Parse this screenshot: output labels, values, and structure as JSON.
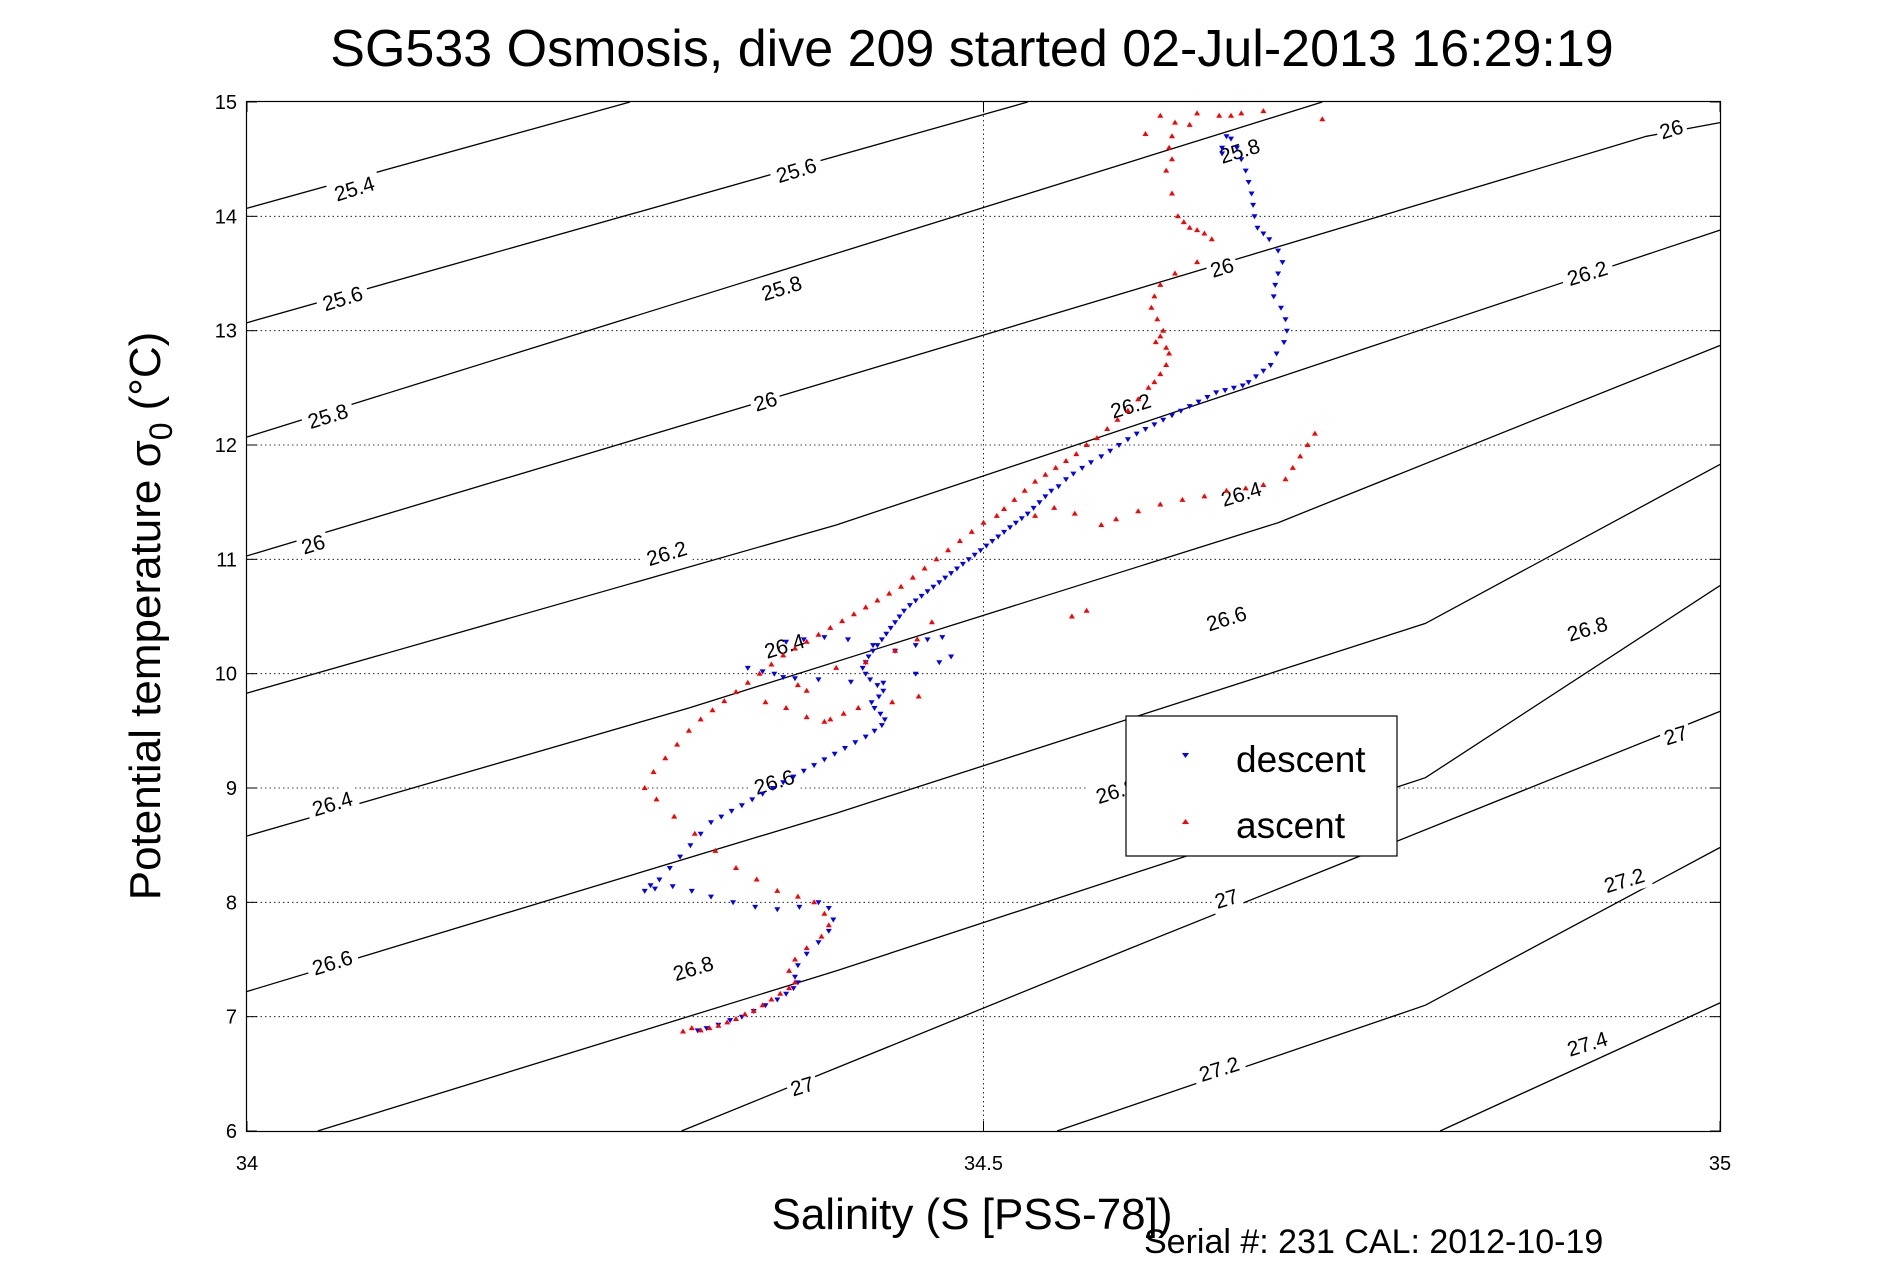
{
  "chart_data": {
    "type": "scatter",
    "title": "SG533 Osmosis, dive 209 started 02-Jul-2013 16:29:19",
    "xlabel": "Salinity (S [PSS-78])",
    "ylabel_main": "Potential temperature σ",
    "ylabel_sub": "0",
    "ylabel_unit": "(°C)",
    "xlim": [
      34,
      35
    ],
    "ylim": [
      6,
      15
    ],
    "x_ticks": [
      34,
      34.5,
      35
    ],
    "x_tick_labels": [
      "34",
      "34.5",
      "35"
    ],
    "y_ticks": [
      6,
      7,
      8,
      9,
      10,
      11,
      12,
      13,
      14,
      15
    ],
    "y_tick_labels": [
      "6",
      "7",
      "8",
      "9",
      "10",
      "11",
      "12",
      "13",
      "14",
      "15"
    ],
    "grid": true,
    "legend_position": "right-middle",
    "footer": "Serial #: 231  CAL: 2012-10-19",
    "density_contours": [
      {
        "label": "25.4",
        "points": [
          [
            34.0,
            14.07
          ],
          [
            34.26,
            15.0
          ]
        ]
      },
      {
        "label": "25.6",
        "points": [
          [
            34.0,
            13.07
          ],
          [
            34.53,
            15.0
          ]
        ]
      },
      {
        "label": "25.8",
        "points": [
          [
            34.0,
            12.07
          ],
          [
            34.73,
            15.0
          ]
        ]
      },
      {
        "label": "26",
        "points": [
          [
            34.0,
            11.03
          ],
          [
            34.95,
            14.7
          ],
          [
            35.0,
            14.82
          ]
        ]
      },
      {
        "label": "26.2",
        "points": [
          [
            34.0,
            9.83
          ],
          [
            34.4,
            11.3
          ],
          [
            35.0,
            13.88
          ]
        ]
      },
      {
        "label": "26.4",
        "points": [
          [
            34.0,
            8.58
          ],
          [
            34.3,
            9.7
          ],
          [
            34.7,
            11.32
          ],
          [
            35.0,
            12.87
          ]
        ]
      },
      {
        "label": "26.6",
        "points": [
          [
            34.0,
            7.22
          ],
          [
            34.4,
            8.78
          ],
          [
            34.8,
            10.44
          ],
          [
            35.0,
            11.83
          ]
        ]
      },
      {
        "label": "26.8",
        "points": [
          [
            34.048,
            6.0
          ],
          [
            34.4,
            7.4
          ],
          [
            34.8,
            9.09
          ],
          [
            35.0,
            10.77
          ]
        ]
      },
      {
        "label": "27",
        "points": [
          [
            34.295,
            6.0
          ],
          [
            34.6,
            7.6
          ],
          [
            35.0,
            9.67
          ]
        ]
      },
      {
        "label": "27.2",
        "points": [
          [
            34.55,
            6.0
          ],
          [
            34.8,
            7.1
          ],
          [
            35.0,
            8.48
          ]
        ]
      },
      {
        "label": "27.4",
        "points": [
          [
            34.81,
            6.0
          ],
          [
            35.0,
            7.12
          ]
        ]
      }
    ],
    "contour_labels": [
      {
        "text": "25.4",
        "x": 34.073,
        "y": 14.24
      },
      {
        "text": "25.6",
        "x": 34.373,
        "y": 14.4
      },
      {
        "text": "25.8",
        "x": 34.674,
        "y": 14.57
      },
      {
        "text": "26",
        "x": 34.967,
        "y": 14.76
      },
      {
        "text": "25.6",
        "x": 34.065,
        "y": 13.28
      },
      {
        "text": "25.8",
        "x": 34.363,
        "y": 13.37
      },
      {
        "text": "26",
        "x": 34.662,
        "y": 13.55
      },
      {
        "text": "26.2",
        "x": 34.91,
        "y": 13.5
      },
      {
        "text": "25.8",
        "x": 34.055,
        "y": 12.25
      },
      {
        "text": "26",
        "x": 34.352,
        "y": 12.38
      },
      {
        "text": "26.2",
        "x": 34.6,
        "y": 12.34
      },
      {
        "text": "26.4",
        "x": 34.675,
        "y": 11.57
      },
      {
        "text": "26",
        "x": 34.045,
        "y": 11.13
      },
      {
        "text": "26.2",
        "x": 34.285,
        "y": 11.05
      },
      {
        "text": "26.6",
        "x": 34.665,
        "y": 10.48
      },
      {
        "text": "26.8",
        "x": 34.91,
        "y": 10.39
      },
      {
        "text": "26.4",
        "x": 34.365,
        "y": 10.24
      },
      {
        "text": "26.6",
        "x": 34.358,
        "y": 9.05
      },
      {
        "text": "27",
        "x": 34.97,
        "y": 9.46
      },
      {
        "text": "26.8",
        "x": 34.59,
        "y": 8.97
      },
      {
        "text": "26.4",
        "x": 34.058,
        "y": 8.86
      },
      {
        "text": "26.6",
        "x": 34.058,
        "y": 7.47
      },
      {
        "text": "26.8",
        "x": 34.303,
        "y": 7.42
      },
      {
        "text": "27",
        "x": 34.665,
        "y": 8.03
      },
      {
        "text": "27.2",
        "x": 34.935,
        "y": 8.19
      },
      {
        "text": "27",
        "x": 34.377,
        "y": 6.39
      },
      {
        "text": "27.2",
        "x": 34.66,
        "y": 6.54
      },
      {
        "text": "27.4",
        "x": 34.91,
        "y": 6.76
      }
    ],
    "series": [
      {
        "name": "descent",
        "color": "#0000ff",
        "marker": "triangle-down",
        "x": [
          34.665,
          34.662,
          34.662,
          34.668,
          34.672,
          34.675,
          34.678,
          34.68,
          34.682,
          34.683,
          34.684,
          34.686,
          34.69,
          34.694,
          34.7,
          34.703,
          34.7,
          34.698,
          34.697,
          34.702,
          34.705,
          34.706,
          34.704,
          34.699,
          34.695,
          34.69,
          34.685,
          34.68,
          34.676,
          34.67,
          34.664,
          34.658,
          34.652,
          34.646,
          34.64,
          34.634,
          34.628,
          34.622,
          34.616,
          34.61,
          34.604,
          34.598,
          34.592,
          34.586,
          34.58,
          34.573,
          34.567,
          34.561,
          34.556,
          34.551,
          34.546,
          34.542,
          34.538,
          34.534,
          34.53,
          34.526,
          34.522,
          34.518,
          34.514,
          34.51,
          34.506,
          34.502,
          34.498,
          34.494,
          34.49,
          34.486,
          34.482,
          34.478,
          34.474,
          34.47,
          34.466,
          34.462,
          34.458,
          34.454,
          34.45,
          34.446,
          34.443,
          34.44,
          34.437,
          34.434,
          34.431,
          34.428,
          34.425,
          34.422,
          34.42,
          34.418,
          34.42,
          34.423,
          34.428,
          34.432,
          34.429,
          34.424,
          34.426,
          34.43,
          34.433,
          34.431,
          34.426,
          34.42,
          34.413,
          34.406,
          34.399,
          34.392,
          34.385,
          34.378,
          34.371,
          34.364,
          34.357,
          34.35,
          34.343,
          34.336,
          34.329,
          34.322,
          34.315,
          34.308,
          34.301,
          34.294,
          34.287,
          34.28,
          34.274,
          34.27,
          34.277,
          34.289,
          34.302,
          34.315,
          34.33,
          34.345,
          34.36,
          34.375,
          34.388,
          34.395,
          34.398,
          34.395,
          34.388,
          34.38,
          34.374,
          34.372,
          34.374,
          34.371,
          34.366,
          34.36,
          34.352,
          34.344,
          34.336,
          34.328,
          34.32,
          34.312,
          34.306,
          34.34,
          34.35,
          34.358,
          34.364,
          34.372,
          34.388,
          34.41,
          34.432,
          34.454,
          34.47,
          34.478,
          34.472,
          34.462,
          34.454,
          34.44,
          34.425,
          34.408,
          34.392,
          34.378,
          34.366
        ],
        "y": [
          14.7,
          14.6,
          14.55,
          14.68,
          14.6,
          14.5,
          14.4,
          14.3,
          14.2,
          14.1,
          14.0,
          13.9,
          13.85,
          13.8,
          13.7,
          13.6,
          13.5,
          13.4,
          13.3,
          13.2,
          13.1,
          13.0,
          12.9,
          12.8,
          12.7,
          12.65,
          12.6,
          12.55,
          12.52,
          12.5,
          12.48,
          12.46,
          12.42,
          12.38,
          12.34,
          12.3,
          12.26,
          12.22,
          12.18,
          12.14,
          12.1,
          12.05,
          12.0,
          11.95,
          11.9,
          11.85,
          11.8,
          11.75,
          11.7,
          11.64,
          11.6,
          11.55,
          11.5,
          11.45,
          11.4,
          11.36,
          11.32,
          11.28,
          11.24,
          11.2,
          11.16,
          11.12,
          11.08,
          11.04,
          11.0,
          10.96,
          10.92,
          10.88,
          10.84,
          10.8,
          10.76,
          10.72,
          10.68,
          10.64,
          10.6,
          10.55,
          10.5,
          10.45,
          10.4,
          10.35,
          10.3,
          10.25,
          10.2,
          10.15,
          10.1,
          10.05,
          10.0,
          9.95,
          9.9,
          9.85,
          9.8,
          9.75,
          9.7,
          9.65,
          9.6,
          9.55,
          9.5,
          9.45,
          9.4,
          9.35,
          9.3,
          9.25,
          9.2,
          9.15,
          9.1,
          9.05,
          9.0,
          8.95,
          8.9,
          8.85,
          8.8,
          8.75,
          8.7,
          8.6,
          8.5,
          8.4,
          8.3,
          8.2,
          8.15,
          8.1,
          8.12,
          8.14,
          8.1,
          8.05,
          8.0,
          7.96,
          7.94,
          7.96,
          8.0,
          7.95,
          7.85,
          7.75,
          7.65,
          7.55,
          7.45,
          7.35,
          7.3,
          7.25,
          7.2,
          7.15,
          7.1,
          7.05,
          7.0,
          6.97,
          6.93,
          6.9,
          6.88,
          10.05,
          10.02,
          10.0,
          9.97,
          9.96,
          9.95,
          9.93,
          9.92,
          10.0,
          10.1,
          10.15,
          10.32,
          10.3,
          10.25,
          10.2,
          10.25,
          10.3,
          10.32,
          10.3,
          10.28
        ]
      },
      {
        "name": "ascent",
        "color": "#ff0000",
        "marker": "triangle-up",
        "x": [
          34.61,
          34.62,
          34.63,
          34.645,
          34.66,
          34.675,
          34.69,
          34.668,
          34.64,
          34.628,
          34.626,
          34.628,
          34.624,
          34.628,
          34.632,
          34.636,
          34.64,
          34.645,
          34.65,
          34.655,
          34.645,
          34.63,
          34.62,
          34.616,
          34.614,
          34.618,
          34.622,
          34.62,
          34.617,
          34.624,
          34.626,
          34.624,
          34.62,
          34.616,
          34.612,
          34.605,
          34.598,
          34.591,
          34.584,
          34.577,
          34.57,
          34.563,
          34.556,
          34.549,
          34.542,
          34.535,
          34.528,
          34.521,
          34.514,
          34.509,
          34.5,
          34.492,
          34.484,
          34.476,
          34.468,
          34.46,
          34.452,
          34.444,
          34.436,
          34.428,
          34.42,
          34.412,
          34.404,
          34.396,
          34.388,
          34.38,
          34.372,
          34.364,
          34.356,
          34.348,
          34.34,
          34.332,
          34.324,
          34.316,
          34.308,
          34.3,
          34.292,
          34.284,
          34.276,
          34.27,
          34.278,
          34.29,
          34.304,
          34.318,
          34.332,
          34.346,
          34.36,
          34.374,
          34.385,
          34.392,
          34.395,
          34.39,
          34.38,
          34.372,
          34.368,
          34.372,
          34.368,
          34.362,
          34.356,
          34.35,
          34.344,
          34.338,
          34.332,
          34.326,
          34.32,
          34.314,
          34.308,
          34.302,
          34.296,
          34.352,
          34.366,
          34.38,
          34.392,
          34.396,
          34.405,
          34.415,
          34.438,
          34.456,
          34.38,
          34.374,
          34.4,
          34.42,
          34.44,
          34.455,
          34.465,
          34.56,
          34.57,
          34.535,
          34.548,
          34.562,
          34.58,
          34.59,
          34.605,
          34.62,
          34.635,
          34.65,
          34.665,
          34.678,
          34.69,
          34.705,
          34.71,
          34.715,
          34.72,
          34.725,
          34.73
        ],
        "y": [
          14.72,
          14.88,
          14.82,
          14.9,
          14.88,
          14.9,
          14.92,
          14.88,
          14.8,
          14.7,
          14.6,
          14.5,
          14.4,
          14.2,
          14.0,
          13.95,
          13.9,
          13.88,
          13.85,
          13.8,
          13.6,
          13.5,
          13.4,
          13.3,
          13.2,
          13.1,
          13.0,
          12.95,
          12.9,
          12.85,
          12.8,
          12.7,
          12.62,
          12.55,
          12.5,
          12.4,
          12.3,
          12.22,
          12.14,
          12.06,
          12.0,
          11.92,
          11.86,
          11.8,
          11.74,
          11.68,
          11.6,
          11.52,
          11.44,
          11.38,
          11.32,
          11.24,
          11.16,
          11.08,
          11.0,
          10.92,
          10.84,
          10.76,
          10.7,
          10.64,
          10.58,
          10.52,
          10.46,
          10.4,
          10.34,
          10.28,
          10.22,
          10.16,
          10.08,
          10.0,
          9.92,
          9.84,
          9.76,
          9.68,
          9.6,
          9.5,
          9.38,
          9.26,
          9.14,
          9.0,
          8.9,
          8.75,
          8.6,
          8.45,
          8.3,
          8.2,
          8.1,
          8.05,
          8.0,
          7.9,
          7.8,
          7.7,
          7.6,
          7.5,
          7.4,
          7.3,
          7.25,
          7.2,
          7.15,
          7.1,
          7.05,
          7.02,
          6.98,
          6.95,
          6.92,
          6.9,
          6.88,
          6.9,
          6.87,
          9.75,
          9.7,
          9.62,
          9.58,
          9.6,
          9.65,
          9.7,
          9.75,
          9.8,
          9.85,
          9.9,
          10.05,
          10.1,
          10.2,
          10.3,
          10.45,
          10.5,
          10.55,
          11.38,
          11.45,
          11.4,
          11.3,
          11.35,
          11.42,
          11.48,
          11.52,
          11.55,
          11.6,
          11.62,
          11.65,
          11.7,
          11.8,
          11.9,
          12.0,
          12.1,
          14.85
        ]
      }
    ]
  }
}
